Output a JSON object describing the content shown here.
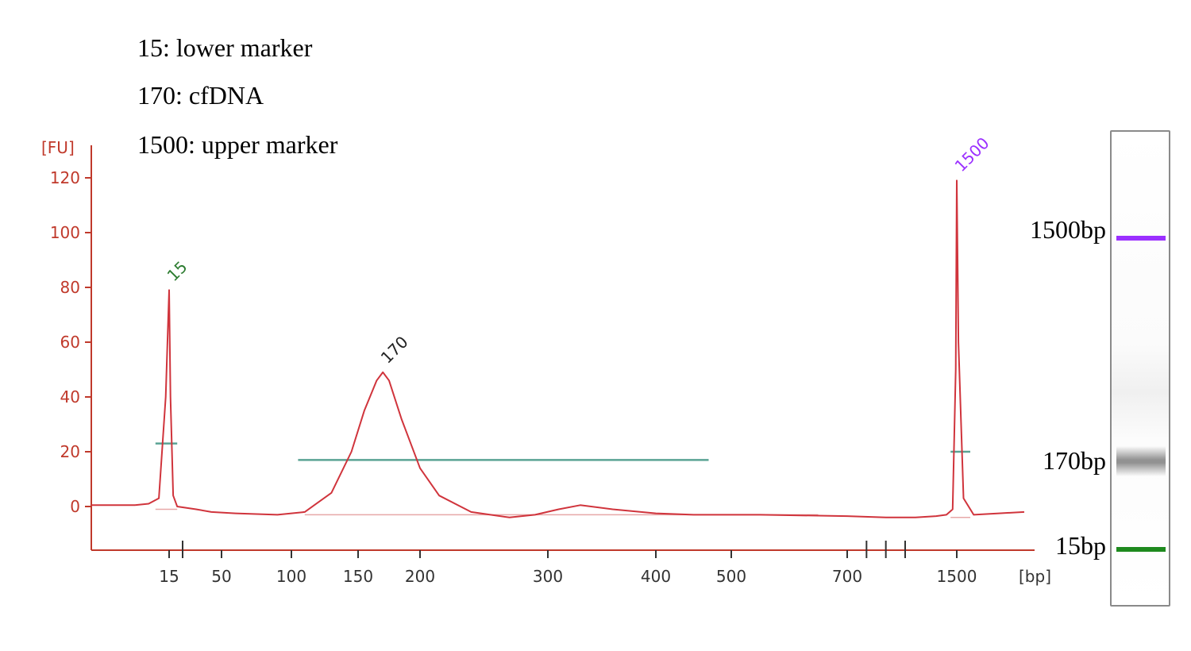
{
  "legend": {
    "line1": "15: lower marker",
    "line2": "170: cfDNA",
    "line3": "1500: upper marker"
  },
  "chart_data": {
    "type": "line",
    "title": "",
    "ylabel": "[FU]",
    "xlabel": "[bp]",
    "ylim": [
      -15,
      130
    ],
    "y_ticks": [
      0,
      20,
      40,
      60,
      80,
      100,
      120
    ],
    "x_ticks": [
      "15",
      "50",
      "100",
      "150",
      "200",
      "300",
      "400",
      "500",
      "700",
      "1500"
    ],
    "grid": false,
    "colors": {
      "trace": "#d0343c",
      "axis": "#c0392b",
      "marker_line": "#5aa394",
      "baseline": "#e7a8a8",
      "lower_marker": "#2e7d32",
      "upper_marker": "#9b30ff"
    },
    "peak_labels": [
      {
        "text": "15",
        "bp": 15,
        "fu": 79,
        "color": "#2e7d32"
      },
      {
        "text": "170",
        "bp": 170,
        "fu": 49,
        "color": "#222222"
      },
      {
        "text": "1500",
        "bp": 1500,
        "fu": 119,
        "color": "#9b30ff"
      }
    ],
    "series": [
      {
        "bp": [
          10,
          12,
          13.5,
          14.5,
          15,
          15.5,
          16.5,
          18,
          25,
          40,
          60,
          90,
          110,
          130,
          145,
          155,
          165,
          170,
          175,
          185,
          200,
          215,
          240,
          270,
          290,
          310,
          330,
          360,
          400,
          450,
          550,
          700,
          900,
          1100,
          1300,
          1400,
          1460,
          1490,
          1500,
          1510,
          1540,
          1600,
          1750,
          1900
        ],
        "fu": [
          0.5,
          1,
          3,
          40,
          79,
          40,
          4,
          0,
          -1,
          -2,
          -2.5,
          -3,
          -2,
          5,
          20,
          35,
          46,
          49,
          46,
          32,
          14,
          4,
          -2,
          -4,
          -3,
          -1,
          0.5,
          -1,
          -2.5,
          -3,
          -3,
          -3.5,
          -4,
          -4,
          -3.5,
          -3,
          -1,
          50,
          119,
          60,
          3,
          -3,
          -2.5,
          -2
        ]
      }
    ],
    "integration_lines": [
      {
        "start_bp": 13,
        "end_bp": 18,
        "fu": 23
      },
      {
        "start_bp": 105,
        "end_bp": 470,
        "fu": 17
      },
      {
        "start_bp": 1440,
        "end_bp": 1580,
        "fu": 20
      }
    ]
  },
  "gel": {
    "band_1500_label": "1500bp",
    "band_170_label": "170bp",
    "band_15_label": "15bp"
  }
}
